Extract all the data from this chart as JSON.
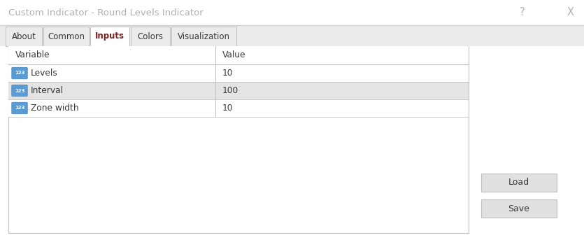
{
  "title": "Custom Indicator - Round Levels Indicator",
  "title_color": "#b0b0b0",
  "title_bg": "#ffffff",
  "dialog_bg": "#ebebeb",
  "tabs": [
    "About",
    "Common",
    "Inputs",
    "Colors",
    "Visualization"
  ],
  "active_tab_idx": 2,
  "table_header_labels": [
    "Variable",
    "Value"
  ],
  "rows": [
    {
      "variable": "Levels",
      "value": "10",
      "highlighted": false
    },
    {
      "variable": "Interval",
      "value": "100",
      "highlighted": true
    },
    {
      "variable": "Zone width",
      "value": "10",
      "highlighted": false
    }
  ],
  "question_mark": "?",
  "close_mark": "X",
  "separator_color": "#d0d0d0",
  "table_border_color": "#c0c0c0",
  "row_highlight_color": "#e4e4e4",
  "row_normal_color": "#ffffff",
  "button_bg": "#e0e0e0",
  "button_border": "#c0c0c0",
  "tab_active_bg": "#ffffff",
  "tab_inactive_bg": "#ebebeb",
  "tab_border": "#c0c0c0",
  "icon_bg": "#5b9bd5",
  "icon_border": "#4a88c0",
  "icon_text": "123",
  "text_color": "#383838",
  "tab_active_text_color": "#7b2020",
  "tab_inactive_text_color": "#383838",
  "col_split": 308
}
